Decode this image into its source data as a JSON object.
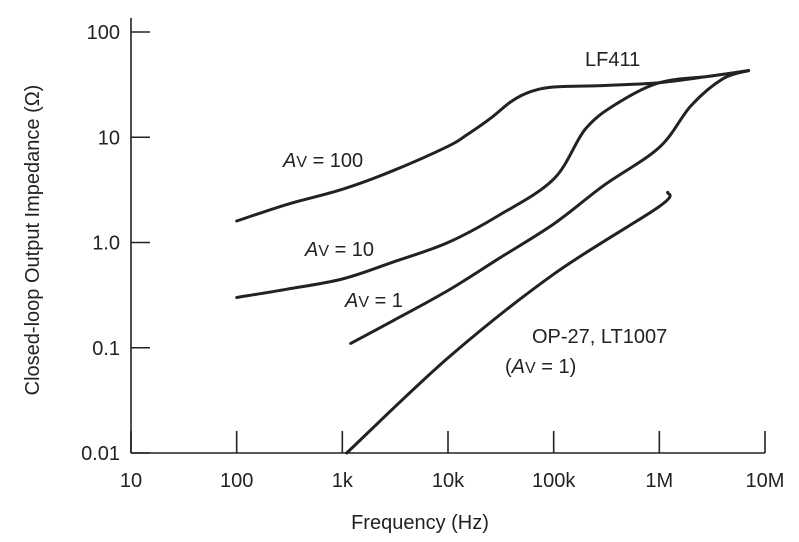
{
  "chart_data": {
    "type": "line",
    "xlabel": "Frequency  (Hz)",
    "ylabel": "Closed-loop Output Impedance  (Ω)",
    "x_scale": "log",
    "y_scale": "log",
    "xlim": [
      10,
      10000000
    ],
    "ylim": [
      0.01,
      100
    ],
    "x_ticks": [
      {
        "value": 10,
        "label": "10"
      },
      {
        "value": 100,
        "label": "100"
      },
      {
        "value": 1000,
        "label": "1k"
      },
      {
        "value": 10000,
        "label": "10k"
      },
      {
        "value": 100000,
        "label": "100k"
      },
      {
        "value": 1000000,
        "label": "1M"
      },
      {
        "value": 10000000,
        "label": "10M"
      }
    ],
    "y_ticks": [
      {
        "value": 0.01,
        "label": "0.01"
      },
      {
        "value": 0.1,
        "label": "0.1"
      },
      {
        "value": 1,
        "label": "1.0"
      },
      {
        "value": 10,
        "label": "10"
      },
      {
        "value": 100,
        "label": "100"
      }
    ],
    "grid": false,
    "series": [
      {
        "name": "LF411, AV = 100",
        "points": [
          [
            100,
            1.6
          ],
          [
            300,
            2.3
          ],
          [
            1000,
            3.2
          ],
          [
            3000,
            4.8
          ],
          [
            10000,
            8.2
          ],
          [
            15000,
            10.5
          ],
          [
            25000,
            15
          ],
          [
            40000,
            22
          ],
          [
            60000,
            27
          ],
          [
            100000,
            30
          ],
          [
            300000,
            31
          ],
          [
            1000000,
            33
          ],
          [
            3000000,
            38
          ],
          [
            7000000,
            43
          ]
        ]
      },
      {
        "name": "LF411, AV = 10",
        "points": [
          [
            100,
            0.3
          ],
          [
            300,
            0.36
          ],
          [
            1000,
            0.45
          ],
          [
            3000,
            0.65
          ],
          [
            10000,
            1.0
          ],
          [
            30000,
            1.8
          ],
          [
            100000,
            4.0
          ],
          [
            200000,
            12
          ],
          [
            400000,
            21
          ],
          [
            1000000,
            33
          ],
          [
            3000000,
            38
          ],
          [
            7000000,
            43
          ]
        ]
      },
      {
        "name": "LF411, AV = 1",
        "points": [
          [
            1200,
            0.11
          ],
          [
            3000,
            0.18
          ],
          [
            10000,
            0.35
          ],
          [
            30000,
            0.7
          ],
          [
            100000,
            1.5
          ],
          [
            300000,
            3.5
          ],
          [
            1000000,
            8.0
          ],
          [
            2000000,
            20
          ],
          [
            4000000,
            36
          ],
          [
            7000000,
            43
          ]
        ]
      },
      {
        "name": "OP-27, LT1007 (AV = 1)",
        "points": [
          [
            1100,
            0.01
          ],
          [
            10000,
            0.08
          ],
          [
            100000,
            0.5
          ],
          [
            1000000,
            2.2
          ],
          [
            1200000,
            3.0
          ]
        ]
      }
    ],
    "annotations": [
      {
        "text": "LF411"
      },
      {
        "prefix": "A",
        "sub": "V",
        "suffix": " = 100"
      },
      {
        "prefix": "A",
        "sub": "V",
        "suffix": " = 10"
      },
      {
        "prefix": "A",
        "sub": "V",
        "suffix": " = 1"
      },
      {
        "text": "OP-27, LT1007"
      },
      {
        "open": "(",
        "prefix": "A",
        "sub": "V",
        "suffix": " = 1)"
      }
    ]
  }
}
